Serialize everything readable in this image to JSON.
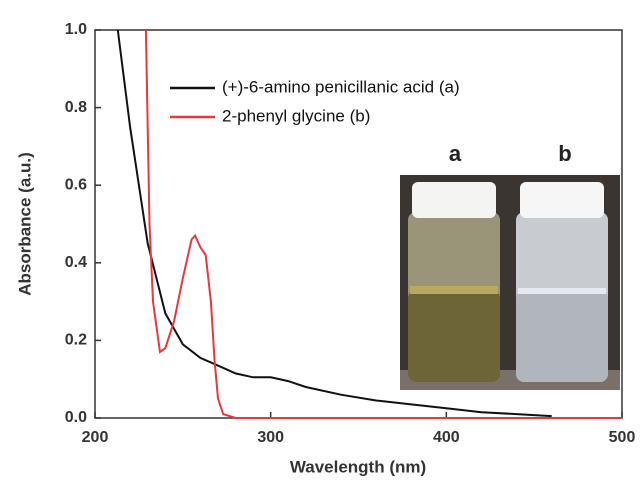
{
  "chart_data": {
    "type": "line",
    "x_label": "Wavelength (nm)",
    "y_label": "Absorbance (a.u.)",
    "xlim": [
      200,
      500
    ],
    "xticks": [
      200,
      300,
      400,
      500
    ],
    "ylim": [
      0,
      1
    ],
    "yticks": [
      {
        "value": 0,
        "label": "0.0"
      },
      0.2,
      0.4,
      0.6,
      0.8,
      {
        "value": 1,
        "label": "1.0"
      }
    ],
    "legend": "upper left",
    "series": [
      {
        "name": "(+)-6-amino penicillanic acid (a)",
        "color": "#111111",
        "x": [
          213,
          220,
          230,
          240,
          250,
          260,
          270,
          280,
          290,
          300,
          310,
          320,
          340,
          360,
          380,
          400,
          420,
          440,
          460
        ],
        "values": [
          1.0,
          0.75,
          0.45,
          0.27,
          0.19,
          0.155,
          0.135,
          0.115,
          0.105,
          0.105,
          0.095,
          0.08,
          0.06,
          0.045,
          0.035,
          0.025,
          0.015,
          0.01,
          0.005
        ]
      },
      {
        "name": "2-phenyl glycine (b)",
        "color": "#e8383d",
        "x": [
          229,
          231,
          233,
          237,
          240,
          245,
          250,
          255,
          257,
          260,
          263,
          266,
          268,
          270,
          273,
          280,
          300,
          400,
          500
        ],
        "values": [
          1.0,
          0.5,
          0.3,
          0.17,
          0.18,
          0.25,
          0.36,
          0.46,
          0.47,
          0.44,
          0.42,
          0.3,
          0.15,
          0.05,
          0.01,
          0.0,
          0.0,
          0.0,
          0.0
        ]
      }
    ]
  },
  "inset_labels": [
    "a",
    "b"
  ]
}
